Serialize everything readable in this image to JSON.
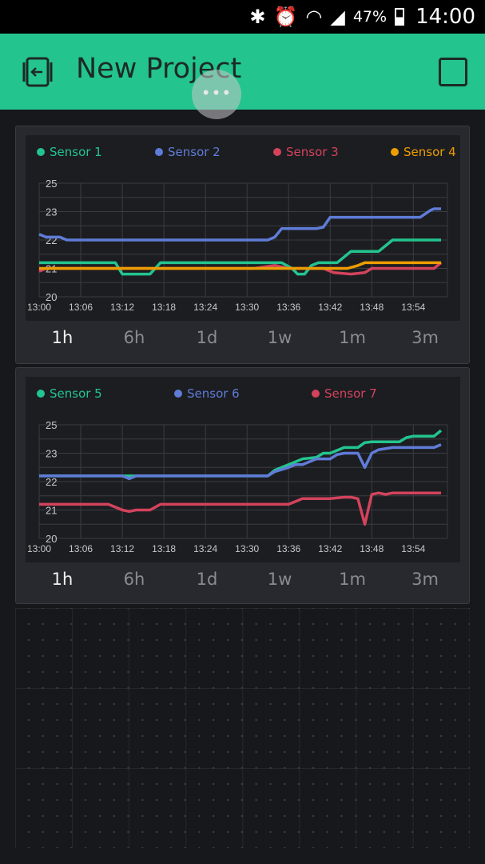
{
  "status": {
    "battery": "47%",
    "time": "14:00"
  },
  "header": {
    "title": "New Project",
    "overlay": "•••"
  },
  "charts_ui": {
    "tabs": [
      "1h",
      "6h",
      "1d",
      "1w",
      "1m",
      "3m"
    ],
    "active_tab": "1h"
  },
  "chart_data": [
    {
      "type": "line",
      "title": "",
      "xlabel": "",
      "ylabel": "",
      "x_ticks": [
        "13:00",
        "13:06",
        "13:12",
        "13:18",
        "13:24",
        "13:30",
        "13:36",
        "13:42",
        "13:48",
        "13:54"
      ],
      "y_ticks": [
        "20",
        "21",
        "22",
        "23",
        "25"
      ],
      "grid": true,
      "legend": "top",
      "series": [
        {
          "name": "Sensor 1",
          "color": "#23c48e",
          "points": [
            [
              0,
              21.2
            ],
            [
              11,
              21.2
            ],
            [
              12,
              20.8
            ],
            [
              16,
              20.8
            ],
            [
              17.5,
              21.2
            ],
            [
              35,
              21.2
            ],
            [
              36.5,
              21.0
            ],
            [
              37.3,
              20.8
            ],
            [
              38.3,
              20.8
            ],
            [
              39.3,
              21.1
            ],
            [
              40.3,
              21.2
            ],
            [
              43,
              21.2
            ],
            [
              44,
              21.4
            ],
            [
              45,
              21.6
            ],
            [
              49,
              21.6
            ],
            [
              50,
              21.8
            ],
            [
              51,
              22.0
            ],
            [
              58,
              22.0
            ]
          ]
        },
        {
          "name": "Sensor 2",
          "color": "#5f7cd8",
          "points": [
            [
              0,
              22.2
            ],
            [
              1,
              22.1
            ],
            [
              1.3,
              22.1
            ],
            [
              3,
              22.1
            ],
            [
              4,
              22.0
            ],
            [
              33,
              22.0
            ],
            [
              34,
              22.1
            ],
            [
              35,
              22.4
            ],
            [
              40,
              22.4
            ],
            [
              41,
              22.45
            ],
            [
              42,
              22.8
            ],
            [
              55,
              22.8
            ],
            [
              56.5,
              23.1
            ],
            [
              57,
              23.2
            ],
            [
              58,
              23.2
            ]
          ]
        },
        {
          "name": "Sensor 3",
          "color": "#d3435c",
          "points": [
            [
              0,
              20.9
            ],
            [
              1,
              21.0
            ],
            [
              31,
              21.0
            ],
            [
              34,
              21.1
            ],
            [
              36,
              21.0
            ],
            [
              41,
              21.0
            ],
            [
              42.5,
              20.85
            ],
            [
              45,
              20.8
            ],
            [
              47,
              20.85
            ],
            [
              48,
              21.0
            ],
            [
              57,
              21.0
            ],
            [
              58,
              21.2
            ]
          ]
        },
        {
          "name": "Sensor 4",
          "color": "#ed9d00",
          "points": [
            [
              0,
              21.0
            ],
            [
              44.5,
              21.0
            ],
            [
              46,
              21.1
            ],
            [
              47,
              21.2
            ],
            [
              58,
              21.2
            ]
          ]
        }
      ]
    },
    {
      "type": "line",
      "title": "",
      "xlabel": "",
      "ylabel": "",
      "x_ticks": [
        "13:00",
        "13:06",
        "13:12",
        "13:18",
        "13:24",
        "13:30",
        "13:36",
        "13:42",
        "13:48",
        "13:54"
      ],
      "y_ticks": [
        "20",
        "21",
        "22",
        "23",
        "25"
      ],
      "grid": true,
      "legend": "top",
      "series": [
        {
          "name": "Sensor 5",
          "color": "#23c48e",
          "points": [
            [
              0,
              22.2
            ],
            [
              33,
              22.2
            ],
            [
              34,
              22.4
            ],
            [
              36,
              22.6
            ],
            [
              37,
              22.7
            ],
            [
              38,
              22.8
            ],
            [
              40,
              22.85
            ],
            [
              41,
              23.0
            ],
            [
              42,
              23.0
            ],
            [
              43,
              23.2
            ],
            [
              44,
              23.4
            ],
            [
              46,
              23.4
            ],
            [
              47,
              23.75
            ],
            [
              48,
              23.8
            ],
            [
              52,
              23.8
            ],
            [
              53,
              24.1
            ],
            [
              54,
              24.2
            ],
            [
              57,
              24.2
            ],
            [
              58,
              24.6
            ]
          ]
        },
        {
          "name": "Sensor 6",
          "color": "#5f7cd8",
          "points": [
            [
              0,
              22.2
            ],
            [
              12,
              22.2
            ],
            [
              13,
              22.1
            ],
            [
              14,
              22.2
            ],
            [
              33,
              22.2
            ],
            [
              34,
              22.35
            ],
            [
              36,
              22.5
            ],
            [
              37,
              22.6
            ],
            [
              38,
              22.6
            ],
            [
              40,
              22.8
            ],
            [
              42,
              22.8
            ],
            [
              43,
              22.95
            ],
            [
              44,
              23.0
            ],
            [
              46,
              23.0
            ],
            [
              47,
              22.5
            ],
            [
              48,
              23.0
            ],
            [
              49,
              23.25
            ],
            [
              51,
              23.4
            ],
            [
              57,
              23.4
            ],
            [
              58,
              23.6
            ]
          ]
        },
        {
          "name": "Sensor 7",
          "color": "#d3435c",
          "points": [
            [
              0,
              21.2
            ],
            [
              10,
              21.2
            ],
            [
              12,
              21.0
            ],
            [
              13,
              20.95
            ],
            [
              14,
              21.0
            ],
            [
              16,
              21.0
            ],
            [
              17.5,
              21.2
            ],
            [
              36,
              21.2
            ],
            [
              38,
              21.4
            ],
            [
              42,
              21.4
            ],
            [
              44,
              21.45
            ],
            [
              45,
              21.45
            ],
            [
              46,
              21.4
            ],
            [
              47,
              20.5
            ],
            [
              48,
              21.55
            ],
            [
              49,
              21.6
            ],
            [
              50,
              21.55
            ],
            [
              51,
              21.6
            ],
            [
              58,
              21.6
            ]
          ]
        }
      ]
    }
  ]
}
